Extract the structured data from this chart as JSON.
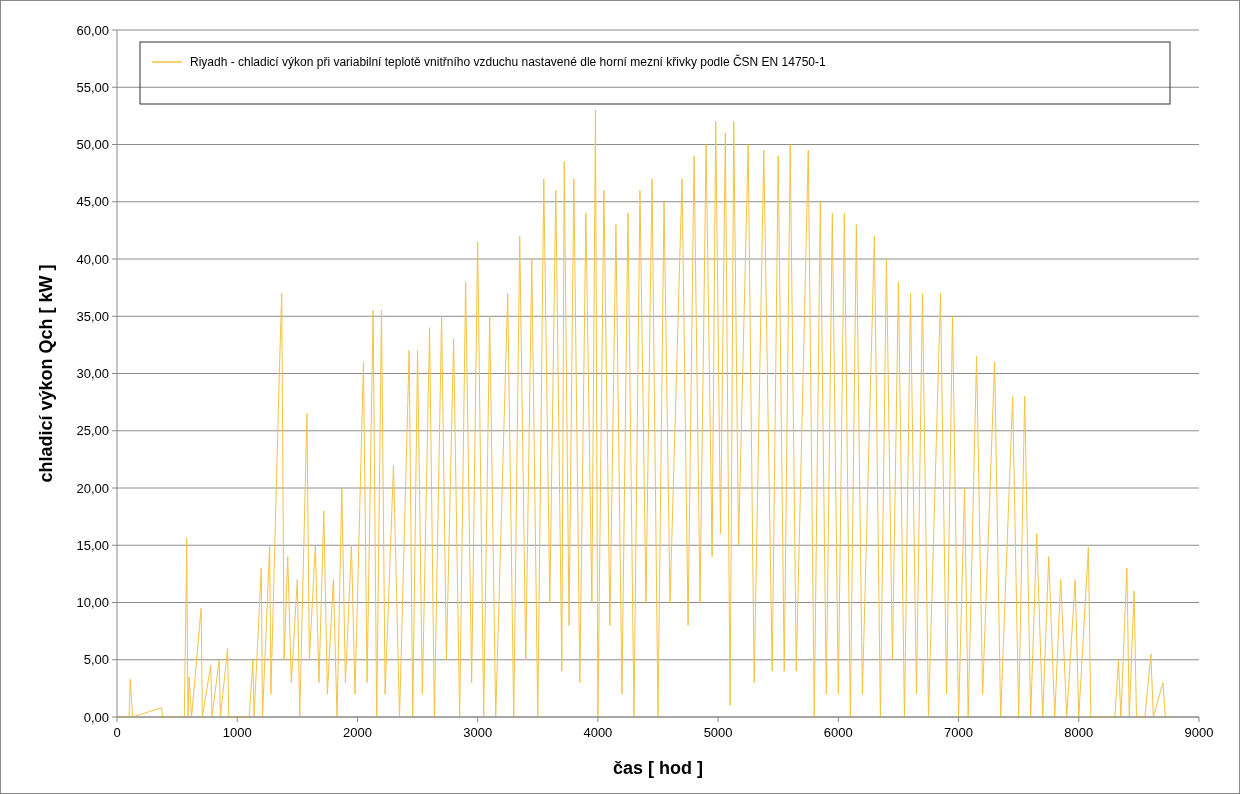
{
  "chart_data": {
    "type": "line",
    "xlabel": "čas [ hod ]",
    "ylabel": "chladicí výkon Qch [ kW ]",
    "legend": "top",
    "grid": "y",
    "marker": "none",
    "line_style": "solid",
    "xlim": [
      0,
      9000
    ],
    "xticks": [
      0,
      1000,
      2000,
      3000,
      4000,
      5000,
      6000,
      7000,
      8000,
      9000
    ],
    "ylim": [
      0,
      60
    ],
    "yticks": [
      {
        "value": 0,
        "label": "0,00"
      },
      {
        "value": 5,
        "label": "5,00"
      },
      {
        "value": 10,
        "label": "10,00"
      },
      {
        "value": 15,
        "label": "15,00"
      },
      {
        "value": 20,
        "label": "20,00"
      },
      {
        "value": 25,
        "label": "25,00"
      },
      {
        "value": 30,
        "label": "30,00"
      },
      {
        "value": 35,
        "label": "35,00"
      },
      {
        "value": 40,
        "label": "40,00"
      },
      {
        "value": 45,
        "label": "45,00"
      },
      {
        "value": 50,
        "label": "50,00"
      },
      {
        "value": 55,
        "label": "55,00"
      },
      {
        "value": 60,
        "label": "60,00"
      }
    ],
    "series": [
      {
        "name": "Riyadh - chladicí výkon při variabilní teplotě vnitřního vzduchu nastavené dle horní mezní křivky podle ČSN EN 14750-1",
        "color": "#f5c242",
        "x": [
          0,
          100,
          110,
          130,
          370,
          380,
          560,
          575,
          580,
          590,
          600,
          620,
          700,
          710,
          780,
          790,
          850,
          860,
          920,
          930,
          1100,
          1130,
          1140,
          1200,
          1210,
          1270,
          1280,
          1350,
          1370,
          1390,
          1420,
          1450,
          1500,
          1520,
          1580,
          1600,
          1650,
          1680,
          1720,
          1750,
          1800,
          1830,
          1870,
          1900,
          1950,
          1980,
          2050,
          2080,
          2130,
          2160,
          2200,
          2230,
          2300,
          2350,
          2430,
          2460,
          2500,
          2540,
          2600,
          2640,
          2700,
          2740,
          2800,
          2850,
          2900,
          2950,
          3000,
          3050,
          3100,
          3150,
          3250,
          3300,
          3350,
          3400,
          3450,
          3500,
          3550,
          3600,
          3650,
          3700,
          3720,
          3760,
          3800,
          3850,
          3900,
          3950,
          3980,
          4000,
          4050,
          4100,
          4150,
          4200,
          4250,
          4300,
          4350,
          4400,
          4450,
          4500,
          4550,
          4600,
          4700,
          4750,
          4800,
          4850,
          4900,
          4950,
          4980,
          5020,
          5060,
          5100,
          5130,
          5170,
          5250,
          5300,
          5380,
          5450,
          5500,
          5550,
          5600,
          5650,
          5750,
          5800,
          5850,
          5900,
          5950,
          6000,
          6050,
          6100,
          6150,
          6200,
          6300,
          6350,
          6400,
          6450,
          6500,
          6550,
          6600,
          6650,
          6700,
          6750,
          6850,
          6900,
          6950,
          7000,
          7050,
          7080,
          7150,
          7200,
          7300,
          7350,
          7450,
          7500,
          7550,
          7600,
          7650,
          7700,
          7750,
          7800,
          7850,
          7900,
          7970,
          8000,
          8080,
          8100,
          8300,
          8330,
          8350,
          8400,
          8420,
          8460,
          8480,
          8550,
          8600,
          8620,
          8700,
          8720,
          8760
        ],
        "values": [
          0,
          0,
          3.3,
          0,
          0.8,
          0,
          0,
          11,
          15.6,
          0,
          3.5,
          0,
          9.5,
          0,
          4.5,
          0,
          5,
          0,
          6,
          0,
          0,
          5,
          0,
          13,
          0,
          15,
          2,
          30,
          37,
          5,
          14,
          3,
          12,
          0,
          26.5,
          5,
          15,
          3,
          18,
          2,
          12,
          0,
          20,
          3,
          15,
          2,
          31,
          3,
          35.5,
          0,
          35.5,
          2,
          22,
          0,
          32,
          0,
          32,
          2,
          34,
          0,
          35,
          5,
          33,
          0,
          38,
          3,
          41.5,
          0,
          35,
          0,
          37,
          0,
          42,
          5,
          40,
          0,
          47,
          10,
          46,
          4,
          48.5,
          8,
          47,
          3,
          44,
          10,
          53,
          0,
          46,
          8,
          43,
          2,
          44,
          0,
          46,
          10,
          47,
          0,
          45,
          10,
          47,
          8,
          49,
          10,
          50,
          14,
          52,
          16,
          51,
          1,
          52,
          15,
          50,
          3,
          49.5,
          4,
          49,
          4,
          50,
          4,
          49.5,
          0,
          45,
          2,
          44,
          2,
          44,
          0,
          43,
          2,
          42,
          0,
          40,
          5,
          38,
          0,
          37,
          2,
          37,
          0,
          37,
          2,
          35,
          0,
          20,
          0,
          31.5,
          2,
          31,
          0,
          28,
          0,
          28,
          0,
          16,
          0,
          14,
          0,
          12,
          0,
          12,
          0,
          14.8,
          0,
          0,
          5,
          0,
          13,
          0,
          11,
          0,
          0,
          5.5,
          0,
          3,
          0,
          0
        ]
      }
    ]
  }
}
